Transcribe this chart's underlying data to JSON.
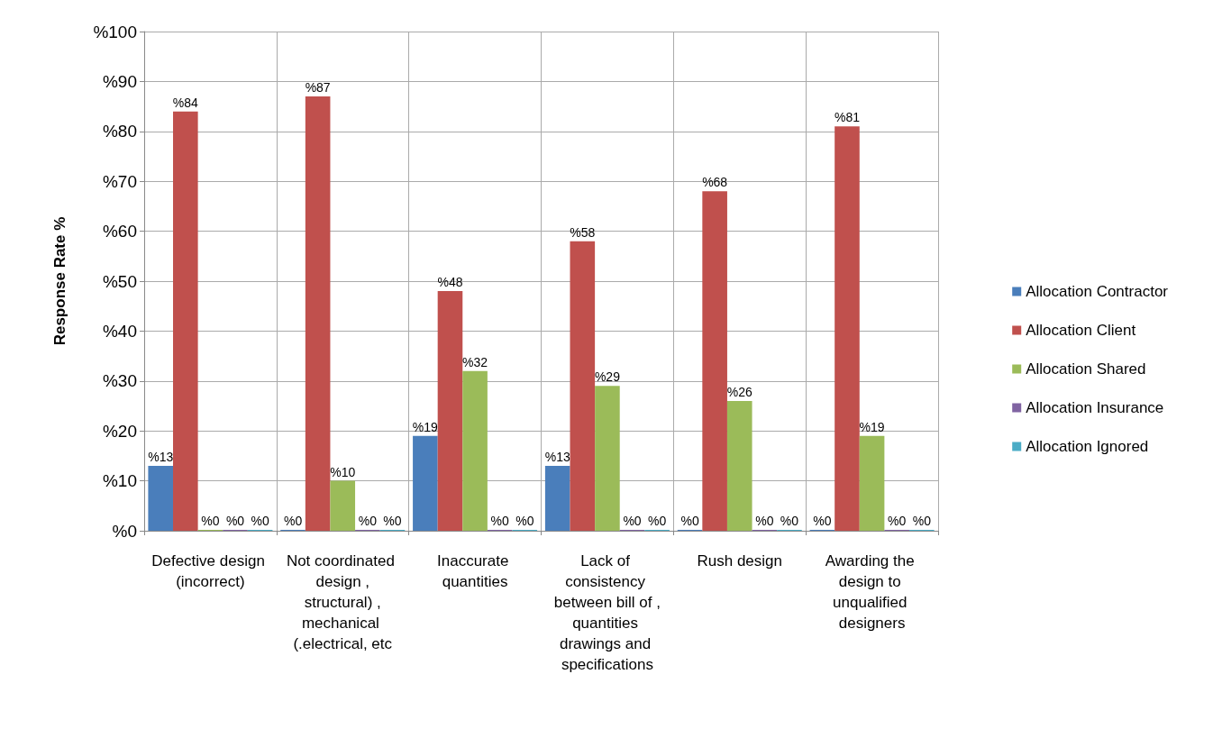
{
  "chart_data": {
    "type": "bar",
    "ylabel": "Response Rate %",
    "categories": [
      "Defective design (incorrect)",
      "Not coordinated design ,structural) ,mechanical (.electrical, etc",
      "Inaccurate quantities",
      "Lack of consistency between bill of ,quantities drawings and specifications",
      "Rush design",
      "Awarding the design to unqualified designers"
    ],
    "series": [
      {
        "name": "Allocation Contractor",
        "color": "#4a7ebb",
        "values": [
          13,
          0,
          19,
          13,
          0,
          0
        ],
        "value_labels": [
          "%13",
          "%0",
          "%19",
          "%13",
          "%0",
          "%0"
        ]
      },
      {
        "name": "Allocation Client",
        "color": "#c0504d",
        "values": [
          84,
          87,
          48,
          58,
          68,
          81
        ],
        "value_labels": [
          "%84",
          "%87",
          "%48",
          "%58",
          "%68",
          "%81"
        ]
      },
      {
        "name": "Allocation Shared",
        "color": "#9bbb59",
        "values": [
          0,
          10,
          32,
          29,
          26,
          19
        ],
        "value_labels": [
          "%0",
          "%10",
          "%32",
          "%29",
          "%26",
          "%19"
        ]
      },
      {
        "name": "Allocation Insurance",
        "color": "#8064a2",
        "values": [
          0,
          0,
          0,
          0,
          0,
          0
        ],
        "value_labels": [
          "%0",
          "%0",
          "%0",
          "%0",
          "%0",
          "%0"
        ]
      },
      {
        "name": "Allocation Ignored",
        "color": "#4bacc6",
        "values": [
          0,
          0,
          0,
          0,
          0,
          0
        ],
        "value_labels": [
          "%0",
          "%0",
          "%0",
          "%0",
          "%0",
          "%0"
        ]
      }
    ],
    "ylim": [
      0,
      100
    ],
    "yticks": [
      {
        "value": 0,
        "label": "%0"
      },
      {
        "value": 10,
        "label": "%10"
      },
      {
        "value": 20,
        "label": "%20"
      },
      {
        "value": 30,
        "label": "%30"
      },
      {
        "value": 40,
        "label": "%40"
      },
      {
        "value": 50,
        "label": "%50"
      },
      {
        "value": 60,
        "label": "%60"
      },
      {
        "value": 70,
        "label": "%70"
      },
      {
        "value": 80,
        "label": "%80"
      },
      {
        "value": 90,
        "label": "%90"
      },
      {
        "value": 100,
        "label": "%100"
      }
    ],
    "grid": true,
    "legend": "right"
  }
}
